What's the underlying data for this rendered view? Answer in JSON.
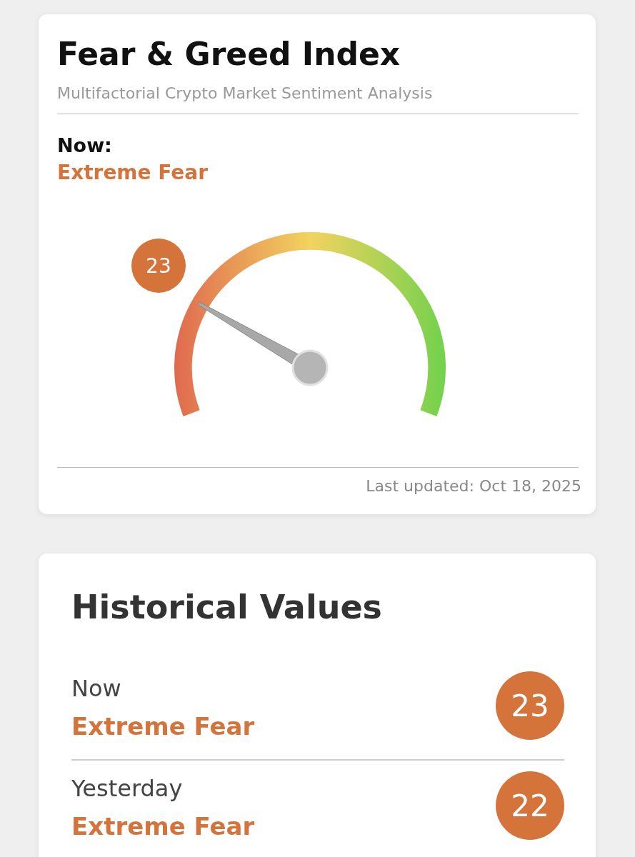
{
  "chart_data": [
    {
      "type": "other",
      "title": "Fear & Greed Index",
      "subtitle": "Multifactorial Crypto Market Sentiment Analysis",
      "values": [
        23
      ],
      "data_labels": true,
      "annotations": [
        "Now:",
        "Extreme Fear",
        "Last updated: Oct 18, 2025"
      ]
    },
    {
      "type": "other",
      "title": "Historical Values",
      "categories": [
        "Now",
        "Yesterday"
      ],
      "values": [
        23,
        22
      ],
      "data_labels": true,
      "annotations": [
        "Extreme Fear",
        "Extreme Fear"
      ]
    }
  ]
}
